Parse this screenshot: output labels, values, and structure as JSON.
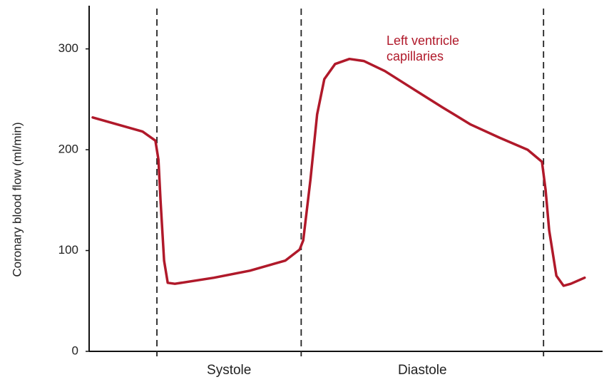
{
  "chart_data": {
    "type": "line",
    "y_label": "Coronary blood flow (ml/min)",
    "xlim": [
      0,
      100
    ],
    "ylim": [
      0,
      340
    ],
    "yticks": [
      0,
      100,
      200,
      300
    ],
    "dividers": [
      13.2,
      41.3,
      88.5
    ],
    "phases": [
      "Systole",
      "Diastole"
    ],
    "series": [
      {
        "name": "Left ventricle capillaries",
        "color": "#b0192a",
        "x": [
          0.7,
          10.4,
          12.9,
          13.5,
          13.9,
          14.6,
          15.3,
          16.7,
          24.3,
          31.3,
          38.2,
          41.0,
          41.7,
          43.1,
          44.4,
          45.8,
          47.9,
          50.7,
          53.5,
          57.6,
          63.2,
          68.8,
          74.3,
          79.9,
          85.4,
          88.2,
          88.9,
          89.6,
          91.0,
          92.4,
          93.8,
          96.5
        ],
        "values": [
          232,
          218,
          209,
          190,
          150,
          90,
          68,
          67,
          73,
          80,
          90,
          101,
          110,
          170,
          235,
          270,
          285,
          290,
          288,
          278,
          260,
          242,
          225,
          212,
          200,
          188,
          160,
          120,
          75,
          65,
          67,
          73
        ]
      }
    ]
  }
}
